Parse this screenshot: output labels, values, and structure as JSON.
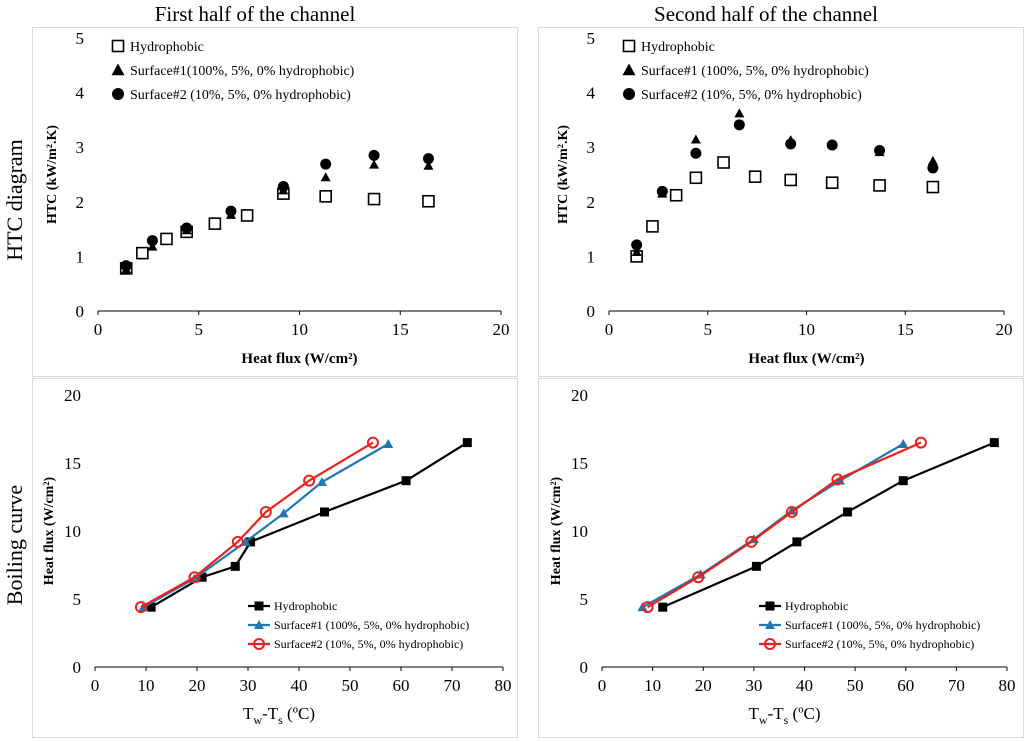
{
  "column_titles": [
    "First half of the channel",
    "Second half of the channel"
  ],
  "row_titles": [
    "HTC diagram",
    "Boiling curve"
  ],
  "colors": {
    "series_black": "#000000",
    "series_blue": "#1f77b4",
    "series_red": "#e8231c",
    "axis": "#000000"
  },
  "chart_data": [
    {
      "type": "scatter",
      "title": "",
      "xlabel": "Heat flux (W/cm²)",
      "ylabel": "HTC (kW/m².K)",
      "xlim": [
        0,
        20
      ],
      "ylim": [
        0,
        5
      ],
      "xticks": [
        0,
        5,
        10,
        15,
        20
      ],
      "yticks": [
        0,
        1,
        2,
        3,
        4,
        5
      ],
      "series": [
        {
          "name": "Hydrophobic",
          "marker": "square-open",
          "x": [
            1.4,
            2.2,
            3.4,
            4.4,
            5.8,
            7.4,
            9.2,
            11.3,
            13.7,
            16.4
          ],
          "y": [
            0.78,
            1.06,
            1.32,
            1.45,
            1.6,
            1.75,
            2.15,
            2.1,
            2.05,
            2.01
          ]
        },
        {
          "name": "Surface#1(100%, 5%, 0% hydrophobic)",
          "marker": "triangle",
          "x": [
            1.4,
            2.7,
            4.4,
            6.6,
            9.2,
            11.3,
            13.7,
            16.4
          ],
          "y": [
            0.76,
            1.18,
            1.48,
            1.76,
            2.21,
            2.45,
            2.68,
            2.66
          ]
        },
        {
          "name": "Surface#2 (10%, 5%, 0% hydrophobic)",
          "marker": "circle",
          "x": [
            1.4,
            2.7,
            4.4,
            6.6,
            9.2,
            11.3,
            13.7,
            16.4
          ],
          "y": [
            0.83,
            1.29,
            1.52,
            1.83,
            2.28,
            2.69,
            2.85,
            2.79
          ]
        }
      ]
    },
    {
      "type": "scatter",
      "title": "",
      "xlabel": "Heat flux (W/cm²)",
      "ylabel": "HTC (kW/m².K)",
      "xlim": [
        0,
        20
      ],
      "ylim": [
        0,
        5
      ],
      "xticks": [
        0,
        5,
        10,
        15,
        20
      ],
      "yticks": [
        0,
        1,
        2,
        3,
        4,
        5
      ],
      "series": [
        {
          "name": "Hydrophobic",
          "marker": "square-open",
          "x": [
            1.4,
            2.2,
            3.4,
            4.4,
            5.8,
            7.4,
            9.2,
            11.3,
            13.7,
            16.4
          ],
          "y": [
            1.0,
            1.55,
            2.12,
            2.44,
            2.72,
            2.46,
            2.4,
            2.35,
            2.3,
            2.27
          ]
        },
        {
          "name": "Surface#1 (100%, 5%, 0% hydrophobic)",
          "marker": "triangle",
          "x": [
            1.4,
            2.7,
            4.4,
            6.6,
            9.2,
            11.3,
            13.7,
            16.4
          ],
          "y": [
            1.08,
            2.15,
            3.14,
            3.62,
            3.13,
            3.05,
            2.91,
            2.75
          ]
        },
        {
          "name": "Surface#2 (10%, 5%,  0% hydrophobic)",
          "marker": "circle",
          "x": [
            1.4,
            2.7,
            4.4,
            6.6,
            9.2,
            11.3,
            13.7,
            16.4
          ],
          "y": [
            1.21,
            2.19,
            2.89,
            3.41,
            3.06,
            3.04,
            2.94,
            2.62
          ]
        }
      ]
    },
    {
      "type": "line",
      "title": "",
      "xlabel": "Tw-Ts (ºC)",
      "ylabel": "Heat flux (W/cm²)",
      "xlim": [
        0,
        80
      ],
      "ylim": [
        0,
        20
      ],
      "xticks": [
        0,
        10,
        20,
        30,
        40,
        50,
        60,
        70,
        80
      ],
      "yticks": [
        0,
        5,
        10,
        15,
        20
      ],
      "series": [
        {
          "name": "Hydrophobic",
          "marker": "square",
          "x": [
            11,
            21,
            27.5,
            30.5,
            45,
            61,
            73
          ],
          "y": [
            4.4,
            6.6,
            7.4,
            9.2,
            11.4,
            13.7,
            16.5
          ]
        },
        {
          "name": "Surface#1 (100%, 5%, 0% hydrophobic)",
          "marker": "triangle",
          "x": [
            9.5,
            19.5,
            29.5,
            37,
            44.5,
            57.5
          ],
          "y": [
            4.4,
            6.5,
            9.2,
            11.3,
            13.6,
            16.4
          ]
        },
        {
          "name": "Surface#2 (10%, 5%, 0% hydrophobic)",
          "marker": "circle-open",
          "x": [
            9,
            19.5,
            28,
            33.5,
            42,
            54.5
          ],
          "y": [
            4.4,
            6.6,
            9.2,
            11.4,
            13.7,
            16.5
          ]
        }
      ]
    },
    {
      "type": "line",
      "title": "",
      "xlabel": "Tw-Ts (ºC)",
      "ylabel": "Heat flux (W/cm²)",
      "xlim": [
        0,
        80
      ],
      "ylim": [
        0,
        20
      ],
      "xticks": [
        0,
        10,
        20,
        30,
        40,
        50,
        60,
        70,
        80
      ],
      "yticks": [
        0,
        5,
        10,
        15,
        20
      ],
      "series": [
        {
          "name": "Hydrophobic",
          "marker": "square",
          "x": [
            12,
            30.5,
            38.5,
            48.5,
            59.5,
            77.5
          ],
          "y": [
            4.4,
            7.4,
            9.2,
            11.4,
            13.7,
            16.5
          ]
        },
        {
          "name": "Surface#1 (100%, 5%, 0% hydrophobic)",
          "marker": "triangle",
          "x": [
            8,
            19.5,
            30,
            37.5,
            47,
            59.5
          ],
          "y": [
            4.4,
            6.8,
            9.4,
            11.5,
            13.7,
            16.4
          ]
        },
        {
          "name": "Surface#2 (10%, 5%, 0% hydrophobic)",
          "marker": "circle-open",
          "x": [
            9,
            19,
            29.5,
            37.5,
            46.5,
            63
          ],
          "y": [
            4.4,
            6.6,
            9.2,
            11.4,
            13.8,
            16.5
          ]
        }
      ]
    }
  ]
}
